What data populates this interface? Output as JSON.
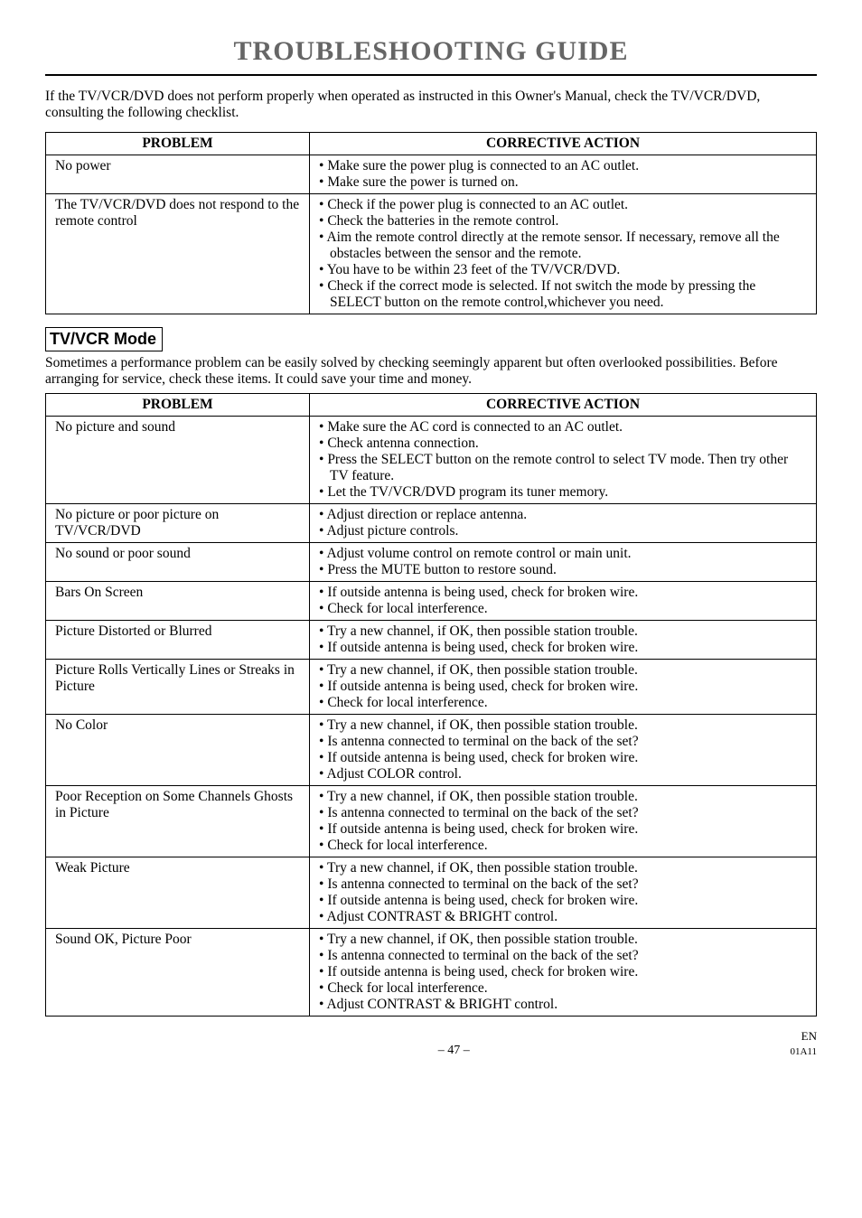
{
  "page": {
    "title": "TROUBLESHOOTING GUIDE",
    "intro": "If the TV/VCR/DVD does not perform properly when operated as instructed in this Owner's Manual, check the TV/VCR/DVD, consulting the following checklist.",
    "table1": {
      "headers": {
        "problem": "PROBLEM",
        "action": "CORRECTIVE ACTION"
      },
      "rows": [
        {
          "problem": "No power",
          "actions": [
            "Make sure the power plug is connected to an AC outlet.",
            "Make sure the power is turned on."
          ]
        },
        {
          "problem": "The TV/VCR/DVD does not respond to the remote control",
          "actions": [
            "Check if the power plug is connected to an AC outlet.",
            "Check the batteries in the remote control.",
            "Aim the remote control directly at the remote sensor. If necessary, remove all the obstacles between the sensor and the remote.",
            "You have to be within 23 feet of the TV/VCR/DVD.",
            "Check if the correct mode is selected.  If not switch the mode by pressing the SELECT button on the remote control,whichever you need."
          ]
        }
      ]
    },
    "mode_label": "TV/VCR Mode",
    "subintro": "Sometimes a performance problem can be easily solved by checking seemingly apparent but often overlooked possibilities. Before arranging for service, check these items. It could save your time and money.",
    "table2": {
      "headers": {
        "problem": "PROBLEM",
        "action": "CORRECTIVE ACTION"
      },
      "rows": [
        {
          "problem": "No picture and sound",
          "actions": [
            "Make sure the AC cord is connected to an AC outlet.",
            "Check antenna connection.",
            "Press the SELECT button on the remote control to select TV mode. Then try other TV feature.",
            "Let the TV/VCR/DVD program its tuner memory."
          ]
        },
        {
          "problem": "No picture or poor picture on TV/VCR/DVD",
          "actions": [
            "Adjust direction or replace antenna.",
            "Adjust picture controls."
          ]
        },
        {
          "problem": "No sound or poor sound",
          "actions": [
            "Adjust volume control on remote control or main unit.",
            "Press the MUTE button to restore sound."
          ]
        },
        {
          "problem": "Bars On Screen",
          "actions": [
            "If outside antenna is being used, check for broken wire.",
            "Check for local interference."
          ]
        },
        {
          "problem": "Picture Distorted or Blurred",
          "actions": [
            "Try a new channel, if OK, then possible station trouble.",
            "If outside antenna is being used, check for broken wire."
          ]
        },
        {
          "problem": "Picture Rolls Vertically Lines or Streaks in Picture",
          "actions": [
            "Try a new channel, if OK, then possible station trouble.",
            "If outside antenna is being used, check for broken wire.",
            "Check for local interference."
          ]
        },
        {
          "problem": "No Color",
          "actions": [
            "Try a new channel, if OK, then possible station trouble.",
            "Is antenna connected to terminal on the back of the set?",
            "If outside antenna is being used, check for broken wire.",
            "Adjust COLOR control."
          ]
        },
        {
          "problem": "Poor Reception on Some Channels Ghosts in Picture",
          "actions": [
            "Try a new channel, if OK, then possible station trouble.",
            "Is antenna connected to terminal on the back of the set?",
            "If outside antenna is being used, check for broken wire.",
            "Check for local interference."
          ]
        },
        {
          "problem": "Weak Picture",
          "actions": [
            "Try a new channel, if OK, then possible station trouble.",
            "Is antenna connected to terminal on the back of the set?",
            "If outside antenna is being used, check for broken wire.",
            "Adjust CONTRAST & BRIGHT control."
          ]
        },
        {
          "problem": "Sound OK, Picture Poor",
          "actions": [
            "Try a new channel, if OK, then possible station trouble.",
            "Is antenna connected to terminal on the back of the set?",
            "If outside antenna is being used, check for broken wire.",
            "Check for local interference.",
            "Adjust CONTRAST & BRIGHT control."
          ]
        }
      ]
    },
    "footer": {
      "page_num": "– 47 –",
      "lang": "EN",
      "code": "01A11"
    }
  },
  "style": {
    "title_color": "#666666",
    "fontsize_title": 30,
    "fontsize_body": 15.5,
    "fontsize_mode": 18,
    "background": "#ffffff",
    "border_color": "#000000",
    "col_problem_width": 292
  }
}
